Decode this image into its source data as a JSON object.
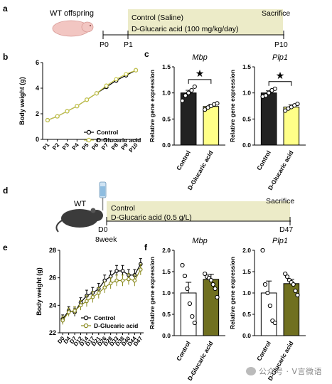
{
  "panels": {
    "a": {
      "letter": "a",
      "animal": "WT offspring",
      "treatment_lines": [
        "Control (Saline)",
        "D-Glucaric acid (100 mg/kg/day)"
      ],
      "sacrifice": "Sacrifice",
      "ticks": [
        "P0",
        "P1",
        "P10"
      ],
      "band_color": "#ecebc8"
    },
    "d": {
      "letter": "d",
      "animal": "WT",
      "treatment_lines": [
        "Control",
        "D-Glucaric acid (0.5 g/L)"
      ],
      "sacrifice": "Sacrifice",
      "ticks": [
        "D0",
        "D47"
      ],
      "age_note": "8week",
      "band_color": "#ecebc8"
    }
  },
  "chart_data": [
    {
      "panel": "b",
      "type": "line",
      "ylabel": "Body weight (g)",
      "ylim": [
        0,
        6
      ],
      "yticks": [
        0,
        2,
        4,
        6
      ],
      "categories": [
        "P1",
        "P2",
        "P3",
        "P4",
        "P5",
        "P6",
        "P7",
        "P8",
        "P9",
        "P10"
      ],
      "series": [
        {
          "name": "Control",
          "values": [
            1.5,
            1.8,
            2.2,
            2.6,
            3.1,
            3.6,
            4.1,
            4.6,
            5.0,
            5.4
          ],
          "color": "#000000"
        },
        {
          "name": "D-Glucaric acid",
          "values": [
            1.5,
            1.8,
            2.2,
            2.6,
            3.1,
            3.6,
            4.2,
            4.7,
            5.1,
            5.4
          ],
          "color": "#c9c94a"
        }
      ],
      "legend": "lower-right"
    },
    {
      "panel": "c",
      "type": "bar",
      "title": "Mbp",
      "ylabel": "Relative gene expression",
      "ylim": [
        0,
        1.5
      ],
      "yticks": [
        0.0,
        0.5,
        1.0,
        1.5
      ],
      "categories": [
        "Control",
        "D-Glucaric acid"
      ],
      "values": [
        1.0,
        0.74
      ],
      "errors": [
        0.05,
        0.04
      ],
      "points": [
        [
          0.85,
          0.95,
          1.0,
          1.05,
          1.12
        ],
        [
          0.68,
          0.72,
          0.75,
          0.78,
          0.8
        ]
      ],
      "colors": [
        "#222222",
        "#ffff88"
      ],
      "significance": "★"
    },
    {
      "panel": "c",
      "type": "bar",
      "title": "Plp1",
      "ylabel": "Relative gene expression",
      "ylim": [
        0,
        1.5
      ],
      "yticks": [
        0.0,
        0.5,
        1.0,
        1.5
      ],
      "categories": [
        "Control",
        "D-Glucaric acid"
      ],
      "values": [
        1.0,
        0.73
      ],
      "errors": [
        0.04,
        0.04
      ],
      "points": [
        [
          0.93,
          0.95,
          1.0,
          1.05,
          1.08
        ],
        [
          0.66,
          0.7,
          0.73,
          0.76,
          0.79
        ]
      ],
      "colors": [
        "#222222",
        "#ffff88"
      ],
      "significance": "★"
    },
    {
      "panel": "e",
      "type": "line",
      "ylabel": "Body weight (g)",
      "ylim": [
        22,
        28
      ],
      "yticks": [
        22,
        24,
        26,
        28
      ],
      "categories": [
        "D0",
        "D4",
        "D7",
        "D12",
        "D14",
        "D17",
        "D21",
        "D26",
        "D28",
        "D33",
        "D38",
        "D40",
        "D44",
        "D47"
      ],
      "series": [
        {
          "name": "Control",
          "values": [
            23.0,
            23.6,
            23.5,
            24.2,
            24.7,
            24.9,
            25.2,
            25.8,
            26.1,
            26.5,
            26.5,
            26.2,
            26.2,
            27.0
          ],
          "errors": [
            0.3,
            0.3,
            0.3,
            0.35,
            0.4,
            0.4,
            0.4,
            0.4,
            0.4,
            0.4,
            0.4,
            0.4,
            0.4,
            0.4
          ],
          "color": "#000000"
        },
        {
          "name": "D-Glucaric acid",
          "values": [
            22.9,
            23.5,
            23.6,
            24.0,
            24.3,
            24.6,
            24.9,
            25.3,
            25.6,
            25.8,
            25.8,
            25.9,
            25.8,
            26.6
          ],
          "errors": [
            0.3,
            0.3,
            0.3,
            0.35,
            0.4,
            0.4,
            0.4,
            0.4,
            0.4,
            0.4,
            0.4,
            0.4,
            0.4,
            0.4
          ],
          "color": "#8a8a1e"
        }
      ],
      "legend": "lower-right"
    },
    {
      "panel": "f",
      "type": "bar",
      "title": "Mbp",
      "ylabel": "Relative gene expression",
      "ylim": [
        0,
        2.0
      ],
      "yticks": [
        0.0,
        0.5,
        1.0,
        1.5,
        2.0
      ],
      "categories": [
        "Control",
        "D-Glucaric acid"
      ],
      "values": [
        1.0,
        1.32
      ],
      "errors": [
        0.25,
        0.12
      ],
      "points": [
        [
          1.65,
          1.4,
          1.1,
          0.75,
          0.45,
          0.3
        ],
        [
          1.45,
          1.38,
          1.35,
          1.3,
          1.2,
          1.1,
          0.9
        ]
      ],
      "colors": [
        "#ffffff",
        "#707020"
      ],
      "significance": ""
    },
    {
      "panel": "f",
      "type": "bar",
      "title": "Plp1",
      "ylabel": "Relative gene expression",
      "ylim": [
        0,
        2.0
      ],
      "yticks": [
        0.0,
        0.5,
        1.0,
        1.5,
        2.0
      ],
      "categories": [
        "Control",
        "D-Glucaric acid"
      ],
      "values": [
        1.0,
        1.22
      ],
      "errors": [
        0.28,
        0.1
      ],
      "points": [
        [
          2.0,
          1.2,
          1.0,
          0.7,
          0.35,
          0.3
        ],
        [
          1.45,
          1.38,
          1.3,
          1.25,
          1.2,
          1.05,
          0.95
        ]
      ],
      "colors": [
        "#ffffff",
        "#707020"
      ],
      "significance": ""
    }
  ],
  "watermark": "公众号 · V言微语"
}
